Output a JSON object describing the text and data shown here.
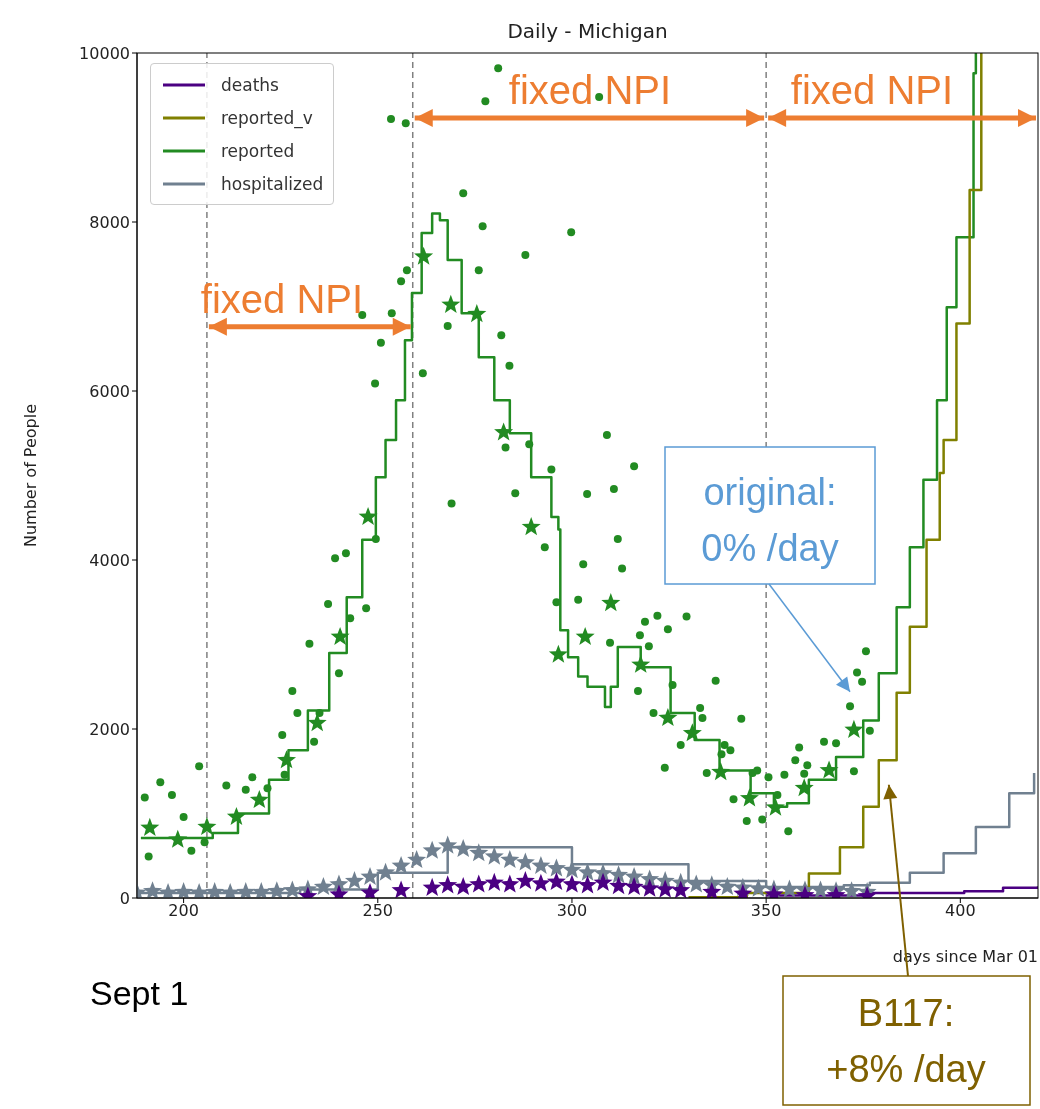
{
  "chart_data": {
    "type": "step",
    "title": "Daily - Michigan",
    "xlabel": "days since Mar 01",
    "ylabel": "Number of People",
    "xlim": [
      188,
      420
    ],
    "ylim": [
      0,
      10000
    ],
    "xticks": [
      200,
      250,
      300,
      350,
      400
    ],
    "yticks": [
      0,
      2000,
      4000,
      6000,
      8000,
      10000
    ],
    "legend": "top left",
    "ref_lines": [
      {
        "axis": "x",
        "value": 206,
        "color": "#808080",
        "line_style": "dashed"
      },
      {
        "axis": "x",
        "value": 259,
        "color": "#808080",
        "line_style": "dashed"
      },
      {
        "axis": "x",
        "value": 350,
        "color": "#808080",
        "line_style": "dashed"
      }
    ],
    "annotations": [
      {
        "text": "fixed NPI",
        "x": 206,
        "y": 6760
      },
      {
        "text": "fixed NPI",
        "x": 259,
        "y": 9230
      },
      {
        "text": "fixed NPI",
        "x": 350,
        "y": 9230
      },
      "original:\n0% /day",
      "B117:\n+8% /day",
      "Sept 1"
    ],
    "series": [
      {
        "name": "deaths",
        "color": "#4b0082",
        "x": [
          350,
          377,
          401,
          411,
          420
        ],
        "values": [
          30,
          60,
          80,
          120,
          140
        ]
      },
      {
        "name": "reported_v",
        "color": "#808000",
        "x": [
          330,
          345,
          361,
          369,
          375,
          379,
          383.6,
          387,
          391.3,
          394.7,
          395.7,
          399,
          402.4,
          405.4
        ],
        "values": [
          10,
          60,
          290,
          600,
          1080,
          1630,
          2430,
          3210,
          4240,
          5030,
          5420,
          6800,
          8380,
          10000
        ]
      },
      {
        "name": "reported",
        "color": "#228b22",
        "x": [
          189,
          207.5,
          214,
          222,
          227,
          232,
          237.5,
          242,
          246,
          249.5,
          252,
          254.7,
          257,
          258.8,
          261.3,
          264,
          266,
          268,
          271.6,
          276,
          280,
          284,
          289.5,
          294.7,
          296.5,
          297,
          299,
          301.6,
          304,
          308.5,
          310,
          311.8,
          317.7,
          325.4,
          331.6,
          338,
          346,
          352,
          355.4,
          361,
          368,
          375,
          379,
          383.6,
          387,
          390.5,
          394,
          396.5,
          399,
          403.4,
          404
        ],
        "values": [
          710,
          770,
          1000,
          1400,
          1750,
          2220,
          2900,
          3560,
          4240,
          4980,
          5420,
          5890,
          6600,
          7160,
          7870,
          8100,
          8020,
          7550,
          6920,
          6400,
          5890,
          5500,
          4980,
          4510,
          4360,
          3170,
          2850,
          2620,
          2500,
          2260,
          2500,
          2970,
          2730,
          2190,
          1870,
          1510,
          1240,
          1080,
          1120,
          1400,
          1670,
          2100,
          2660,
          3440,
          4150,
          4950,
          5890,
          6990,
          7820,
          9760,
          10000
        ]
      },
      {
        "name": "hospitalized",
        "color": "#708090",
        "x": [
          188,
          230,
          250,
          268,
          300,
          330,
          350,
          370,
          376.7,
          387,
          395.7,
          404,
          412.6,
          419
        ],
        "values": [
          60,
          100,
          300,
          600,
          400,
          200,
          130,
          150,
          180,
          300,
          530,
          840,
          1240,
          1480
        ]
      },
      {
        "type": "scatter",
        "marker": "circle",
        "color": "#228b22",
        "x": [
          190,
          191,
          194,
          197,
          200,
          202,
          204,
          205.4,
          211,
          216,
          217.7,
          221.6,
          225.4,
          226,
          228,
          229.3,
          232.4,
          233.6,
          235,
          237.2,
          239,
          240,
          241.8,
          242.9,
          246,
          247,
          249.3,
          249.5,
          250.8,
          253.4,
          253.6,
          256,
          257.2,
          257.5,
          261.6,
          268,
          269,
          272,
          276,
          277,
          277.7,
          281,
          281.8,
          282.9,
          283.9,
          285.4,
          288,
          289,
          293,
          294.7,
          296,
          299.8,
          301.6,
          302.9,
          303.9,
          307,
          309,
          309.8,
          310.8,
          311.8,
          312.9,
          316,
          317,
          317.5,
          318.8,
          319.8,
          321,
          322,
          323.9,
          324.7,
          325.9,
          328,
          329.5,
          333,
          333.6,
          334.7,
          337,
          338.5,
          339.3,
          340.8,
          341.6,
          343.6,
          345,
          346.5,
          347.7,
          349,
          350.6,
          352.9,
          354.7,
          355.7,
          357.5,
          358.5,
          359.8,
          360.6,
          364.9,
          368,
          371.6,
          372.6,
          373.4,
          374.7,
          375.7,
          376.7
        ],
        "values": [
          1190,
          490,
          1370,
          1220,
          960,
          560,
          1560,
          660,
          1330,
          1280,
          1430,
          1300,
          1930,
          1460,
          2450,
          2190,
          3010,
          1850,
          2190,
          3480,
          4020,
          2660,
          4080,
          3310,
          6900,
          3430,
          6090,
          4250,
          6570,
          9220,
          6920,
          7300,
          9170,
          7430,
          6210,
          6770,
          4670,
          8340,
          7430,
          7950,
          9430,
          9820,
          6660,
          5330,
          6300,
          4790,
          7610,
          5370,
          4150,
          5070,
          3500,
          7880,
          3530,
          3950,
          4780,
          9480,
          5480,
          3020,
          4840,
          4250,
          3900,
          5110,
          2450,
          3110,
          3270,
          2980,
          2190,
          3340,
          1540,
          3180,
          2520,
          1810,
          3330,
          2250,
          2130,
          1480,
          2570,
          1700,
          1810,
          1750,
          1170,
          2120,
          910,
          1480,
          1510,
          930,
          1430,
          1220,
          1460,
          790,
          1630,
          1780,
          1470,
          1570,
          1850,
          1830,
          2270,
          1500,
          2670,
          2560,
          2920,
          1980
        ]
      },
      {
        "type": "scatter",
        "marker": "star",
        "color": "#228b22",
        "x": [
          191.3,
          198.5,
          206,
          213.6,
          219.5,
          226.5,
          234.4,
          240.3,
          247.5,
          261.8,
          268.8,
          275.5,
          282.4,
          289.5,
          296.5,
          303.4,
          310,
          317.7,
          324.7,
          331,
          338.3,
          345.7,
          352.4,
          359.8,
          366.2,
          372.6
        ],
        "values": [
          830,
          690,
          840,
          960,
          1160,
          1630,
          2070,
          3090,
          4510,
          7590,
          7020,
          6910,
          5510,
          4390,
          2880,
          3090,
          3490,
          2760,
          2130,
          1950,
          1490,
          1180,
          1070,
          1300,
          1510,
          1990
        ]
      },
      {
        "type": "scatter",
        "marker": "star",
        "color": "#708090",
        "x": [
          188,
          192,
          196,
          200,
          204,
          208,
          212,
          216,
          220,
          224,
          228,
          232,
          236,
          240,
          244,
          248,
          252,
          256,
          260,
          264,
          268,
          272,
          276,
          280,
          284,
          288,
          292,
          296,
          300,
          304,
          308,
          312,
          316,
          320,
          324,
          328,
          332,
          336,
          340,
          344,
          348,
          352,
          356,
          360,
          364,
          368,
          372,
          376
        ],
        "values": [
          60,
          80,
          60,
          70,
          60,
          70,
          60,
          70,
          70,
          80,
          90,
          100,
          130,
          160,
          200,
          250,
          300,
          380,
          450,
          560,
          620,
          580,
          530,
          490,
          450,
          420,
          380,
          350,
          330,
          300,
          290,
          270,
          250,
          220,
          200,
          180,
          160,
          150,
          130,
          120,
          110,
          100,
          100,
          90,
          90,
          80,
          80,
          70
        ]
      },
      {
        "type": "scatter",
        "marker": "star",
        "color": "#4b0082",
        "x": [
          232,
          240,
          248,
          256,
          264,
          268,
          272,
          276,
          280,
          284,
          288,
          292,
          296,
          300,
          304,
          308,
          312,
          316,
          320,
          324,
          328,
          336,
          344,
          352,
          360,
          368,
          376
        ],
        "values": [
          20,
          40,
          60,
          90,
          120,
          150,
          130,
          160,
          180,
          160,
          200,
          170,
          190,
          160,
          150,
          180,
          140,
          130,
          110,
          100,
          90,
          70,
          50,
          40,
          30,
          30,
          20
        ]
      }
    ]
  }
}
